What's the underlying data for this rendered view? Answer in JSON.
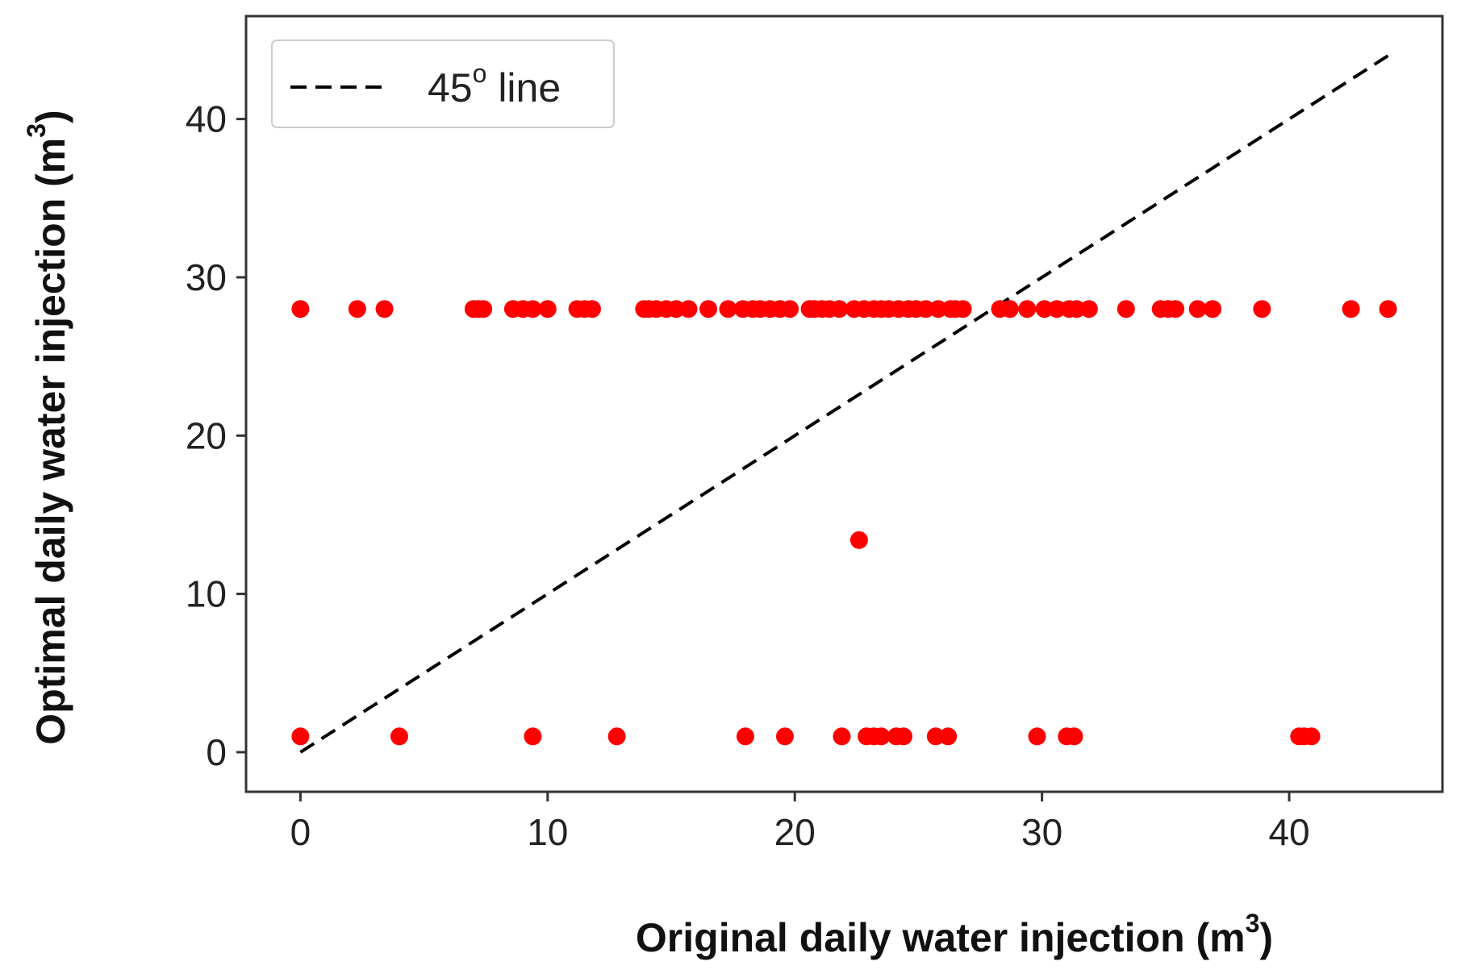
{
  "chart_data": {
    "type": "scatter",
    "xlabel": {
      "text": "Original daily water injection (m",
      "sup": "3",
      "close": ")"
    },
    "ylabel": {
      "text": "Optimal daily water injection (m",
      "sup": "3",
      "close": ")"
    },
    "xlim": [
      -2.2,
      46.2
    ],
    "ylim": [
      -2.5,
      46.5
    ],
    "xticks": [
      "0",
      "10",
      "20",
      "30",
      "40"
    ],
    "yticks": [
      "0",
      "10",
      "20",
      "30",
      "40"
    ],
    "grid": false,
    "legend": {
      "position": "top-left",
      "entries": [
        {
          "text": "45",
          "sup": "o",
          "rest": " line"
        }
      ]
    },
    "reference_line": {
      "x": [
        0,
        44
      ],
      "y": [
        0,
        44
      ],
      "style": "dashed"
    },
    "colors": {
      "points": "#ff0000",
      "line": "#000000",
      "axes": "#333333"
    },
    "series": [
      {
        "x": [
          0,
          2.3,
          3.4,
          7.0,
          7.2,
          7.4,
          8.6,
          9.0,
          9.4,
          10.0,
          11.2,
          11.5,
          11.8,
          13.9,
          14.1,
          14.4,
          14.8,
          15.2,
          15.7,
          16.5,
          17.3,
          17.9,
          18.3,
          18.6,
          19.0,
          19.4,
          19.8,
          20.6,
          20.8,
          21.1,
          21.4,
          21.8,
          22.4,
          22.8,
          23.2,
          23.5,
          23.8,
          24.2,
          24.6,
          24.9,
          25.3,
          25.8,
          26.3,
          26.5,
          26.8,
          28.3,
          28.7,
          29.4,
          30.1,
          30.6,
          31.1,
          31.4,
          31.9,
          33.4,
          34.8,
          35.1,
          35.4,
          36.3,
          36.9,
          38.9,
          42.5,
          44.0
        ],
        "y": [
          28,
          28,
          28,
          28,
          28,
          28,
          28,
          28,
          28,
          28,
          28,
          28,
          28,
          28,
          28,
          28,
          28,
          28,
          28,
          28,
          28,
          28,
          28,
          28,
          28,
          28,
          28,
          28,
          28,
          28,
          28,
          28,
          28,
          28,
          28,
          28,
          28,
          28,
          28,
          28,
          28,
          28,
          28,
          28,
          28,
          28,
          28,
          28,
          28,
          28,
          28,
          28,
          28,
          28,
          28,
          28,
          28,
          28,
          28,
          28,
          28,
          28
        ]
      },
      {
        "x": [
          0,
          4.0,
          9.4,
          12.8,
          18.0,
          19.6,
          21.9,
          22.9,
          23.2,
          23.5,
          24.1,
          24.4,
          25.7,
          26.2,
          29.8,
          31.0,
          31.3,
          40.4,
          40.6,
          40.9
        ],
        "y": [
          1,
          1,
          1,
          1,
          1,
          1,
          1,
          1,
          1,
          1,
          1,
          1,
          1,
          1,
          1,
          1,
          1,
          1,
          1,
          1
        ]
      },
      {
        "x": [
          22.6
        ],
        "y": [
          13.4
        ]
      }
    ]
  }
}
